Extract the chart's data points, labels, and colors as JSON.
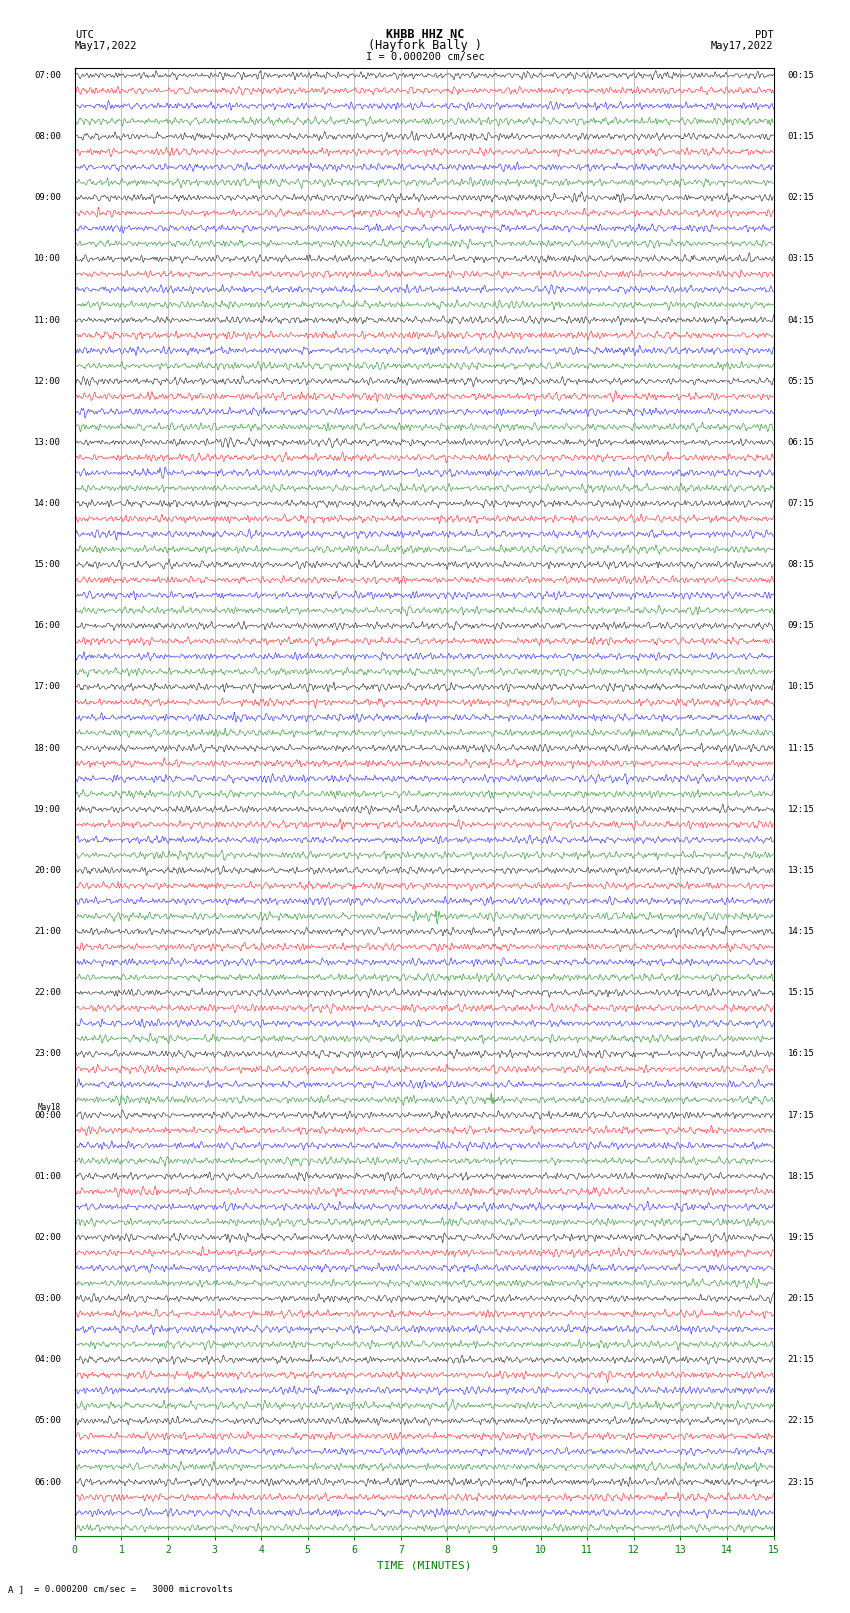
{
  "title_line1": "KHBB HHZ NC",
  "title_line2": "(Hayfork Bally )",
  "title_line3": "I = 0.000200 cm/sec",
  "label_left_top": "UTC",
  "label_left_date": "May17,2022",
  "label_right_top": "PDT",
  "label_right_date": "May17,2022",
  "xlabel": "TIME (MINUTES)",
  "bottom_note": "= 0.000200 cm/sec =   3000 microvolts",
  "bg_color": "#ffffff",
  "trace_colors": [
    "#000000",
    "#ff0000",
    "#0000ff",
    "#008000"
  ],
  "grid_color": "#888888",
  "trace_linewidth": 0.35,
  "num_traces": 96,
  "x_ticks": [
    0,
    1,
    2,
    3,
    4,
    5,
    6,
    7,
    8,
    9,
    10,
    11,
    12,
    13,
    14,
    15
  ],
  "noise_amplitude": 0.28,
  "noise_seed": 42,
  "left_time_labels": [
    "07:00",
    "",
    "",
    "",
    "08:00",
    "",
    "",
    "",
    "09:00",
    "",
    "",
    "",
    "10:00",
    "",
    "",
    "",
    "11:00",
    "",
    "",
    "",
    "12:00",
    "",
    "",
    "",
    "13:00",
    "",
    "",
    "",
    "14:00",
    "",
    "",
    "",
    "15:00",
    "",
    "",
    "",
    "16:00",
    "",
    "",
    "",
    "17:00",
    "",
    "",
    "",
    "18:00",
    "",
    "",
    "",
    "19:00",
    "",
    "",
    "",
    "20:00",
    "",
    "",
    "",
    "21:00",
    "",
    "",
    "",
    "22:00",
    "",
    "",
    "",
    "23:00",
    "",
    "",
    "",
    "May18\n00:00",
    "",
    "",
    "",
    "01:00",
    "",
    "",
    "",
    "02:00",
    "",
    "",
    "",
    "03:00",
    "",
    "",
    "",
    "04:00",
    "",
    "",
    "",
    "05:00",
    "",
    "",
    "",
    "06:00",
    "",
    "",
    ""
  ],
  "right_time_labels": [
    "00:15",
    "",
    "",
    "",
    "01:15",
    "",
    "",
    "",
    "02:15",
    "",
    "",
    "",
    "03:15",
    "",
    "",
    "",
    "04:15",
    "",
    "",
    "",
    "05:15",
    "",
    "",
    "",
    "06:15",
    "",
    "",
    "",
    "07:15",
    "",
    "",
    "",
    "08:15",
    "",
    "",
    "",
    "09:15",
    "",
    "",
    "",
    "10:15",
    "",
    "",
    "",
    "11:15",
    "",
    "",
    "",
    "12:15",
    "",
    "",
    "",
    "13:15",
    "",
    "",
    "",
    "14:15",
    "",
    "",
    "",
    "15:15",
    "",
    "",
    "",
    "16:15",
    "",
    "",
    "",
    "17:15",
    "",
    "",
    "",
    "18:15",
    "",
    "",
    "",
    "19:15",
    "",
    "",
    "",
    "20:15",
    "",
    "",
    "",
    "21:15",
    "",
    "",
    "",
    "22:15",
    "",
    "",
    "",
    "23:15",
    "",
    "",
    ""
  ]
}
